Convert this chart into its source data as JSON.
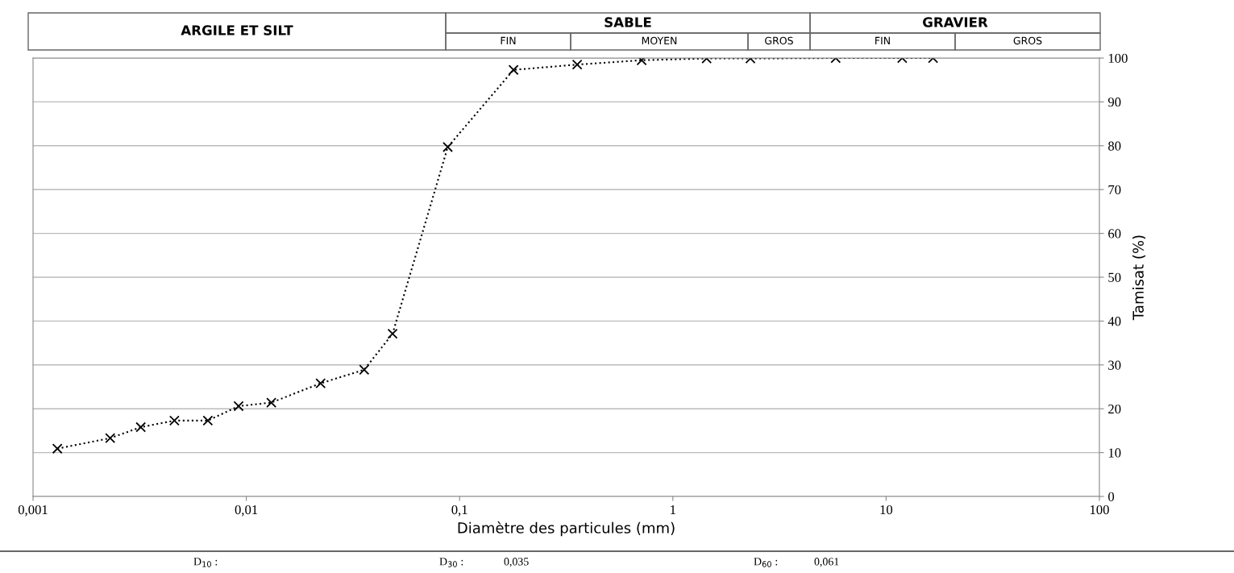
{
  "chart_data": {
    "type": "line",
    "xlabel": "Diamètre des particules (mm)",
    "ylabel": "Tamisat (%)",
    "x": [
      0.0013,
      0.0023,
      0.0032,
      0.0046,
      0.0066,
      0.0092,
      0.0131,
      0.0223,
      0.0357,
      0.0485,
      0.088,
      0.179,
      0.356,
      0.714,
      1.44,
      2.31,
      5.8,
      11.9,
      16.6
    ],
    "series": [
      {
        "color": "#000000",
        "values": [
          10.9,
          13.3,
          15.8,
          17.3,
          17.3,
          20.6,
          21.4,
          25.8,
          28.9,
          37.1,
          79.7,
          97.3,
          98.5,
          99.5,
          99.9,
          99.9,
          100,
          100,
          100
        ]
      }
    ],
    "log": "x",
    "marker": "cross",
    "line_style": "dotted",
    "grid": "y",
    "legend": false,
    "xlim": [
      0.001,
      100
    ],
    "xticks": [
      {
        "value": 0.001,
        "label": "0,001"
      },
      {
        "value": 0.01,
        "label": "0,01"
      },
      {
        "value": 0.1,
        "label": "0,1"
      },
      {
        "value": 1,
        "label": "1"
      },
      {
        "value": 10,
        "label": "10"
      },
      {
        "value": 100,
        "label": "100"
      }
    ],
    "ylim": [
      0,
      100
    ],
    "yticks": [
      0,
      10,
      20,
      30,
      40,
      50,
      60,
      70,
      80,
      90,
      100
    ],
    "annotations": [
      "ARGILE ET SILT",
      "SABLE",
      "GRAVIER",
      "FIN",
      "MOYEN",
      "GROS",
      "FIN",
      "GROS",
      "D$_{10}$ :",
      "D$_{30}$ :",
      "0,035",
      "D$_{60}$ :",
      "0,061"
    ]
  }
}
